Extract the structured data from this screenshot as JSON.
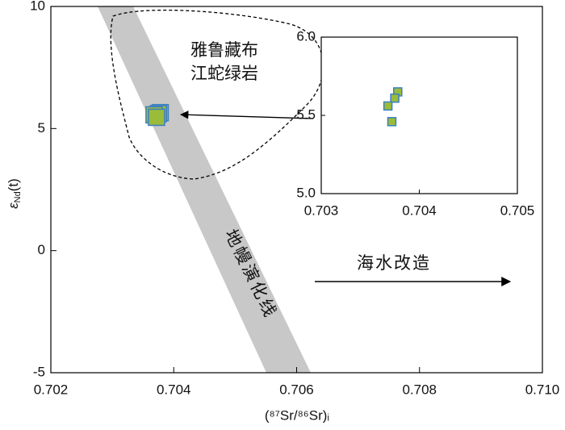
{
  "chart_data": [
    {
      "type": "scatter",
      "x_label": "(⁸⁷Sr/⁸⁶Sr)ᵢ",
      "y_label": {
        "symbol": "ε",
        "subscript": "Nd",
        "suffix": "(t)"
      },
      "annotations": {
        "field_line1": "雅鲁藏布",
        "field_line2": "江蛇绿岩",
        "band": "地幔演化线",
        "arrow": "海水改造"
      },
      "xlim": [
        0.702,
        0.71
      ],
      "xticks": [
        0.702,
        0.704,
        0.706,
        0.708,
        {
          "value": 0.71,
          "label": "0.710"
        }
      ],
      "ylim": [
        -5,
        10
      ],
      "yticks": [
        -5,
        0,
        5,
        10
      ],
      "marker_fill": "#9bbb3b",
      "marker_edge": "#3a7fc3",
      "x": [
        0.70378,
        0.70375,
        0.70368,
        0.70372
      ],
      "values": [
        5.65,
        5.61,
        5.56,
        5.46
      ]
    },
    {
      "type": "scatter",
      "xlim": [
        0.703,
        0.705
      ],
      "xticks": [
        0.703,
        0.704,
        0.705
      ],
      "ylim": [
        5.0,
        6.0
      ],
      "yticks": [
        {
          "value": 5.0,
          "label": "5.0"
        },
        5.5,
        {
          "value": 6.0,
          "label": "6.0"
        }
      ],
      "marker_fill": "#9bbb3b",
      "marker_edge": "#3a7fc3",
      "x": [
        0.70378,
        0.70375,
        0.70368,
        0.70372
      ],
      "values": [
        5.65,
        5.61,
        5.56,
        5.46
      ]
    }
  ]
}
